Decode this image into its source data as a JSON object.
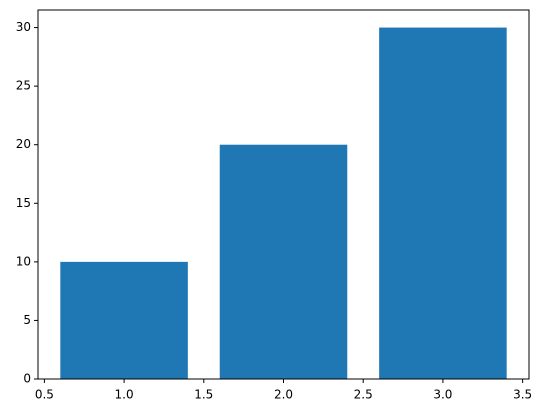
{
  "chart_data": {
    "type": "bar",
    "x": [
      1,
      2,
      3
    ],
    "values": [
      10,
      20,
      30
    ],
    "width": 0.8,
    "color": "#1f77b4",
    "xlim": [
      0.46,
      3.54
    ],
    "xticks": [
      0.5,
      {
        "value": 1,
        "label": "1.0"
      },
      1.5,
      {
        "value": 2,
        "label": "2.0"
      },
      2.5,
      {
        "value": 3,
        "label": "3.0"
      },
      3.5
    ],
    "ylim": [
      0,
      31.5
    ],
    "yticks": [
      0,
      5,
      10,
      15,
      20,
      25,
      30
    ],
    "grid": false
  }
}
